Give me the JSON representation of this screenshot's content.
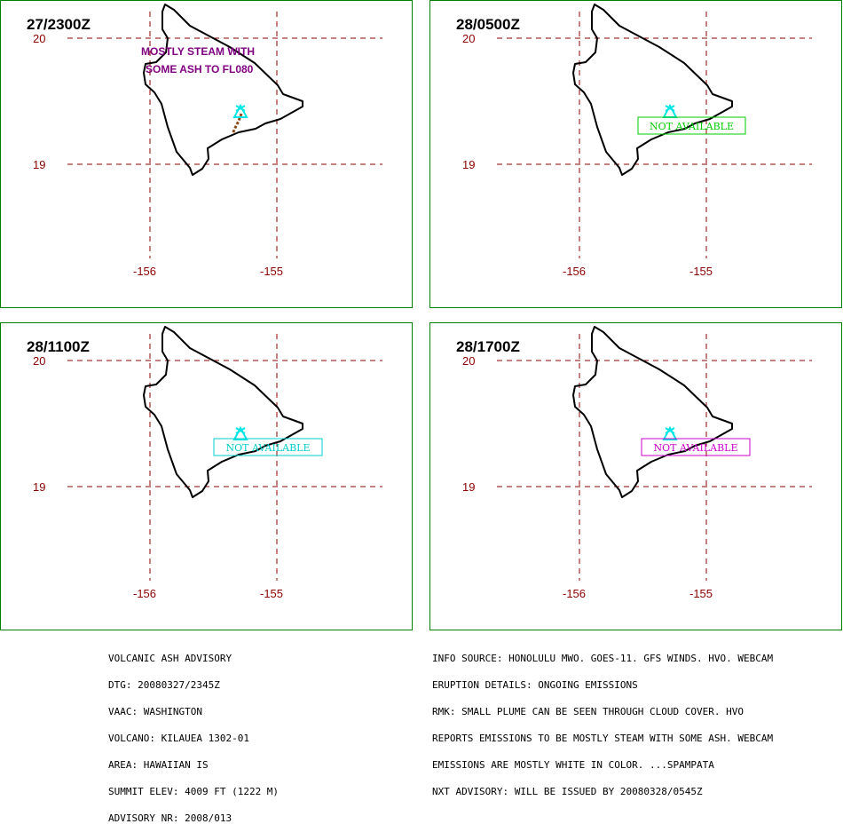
{
  "map": {
    "lat_labels": [
      "20",
      "19"
    ],
    "lon_labels": [
      "-156",
      "-155"
    ],
    "colors": {
      "frame": "#008000",
      "grid": "#8b0000",
      "coast": "#000000",
      "volcano": "#00e5e5",
      "plume": "#8b4513"
    },
    "volcano_icon": "volcano-triangle-icon"
  },
  "panels": [
    {
      "time": "27/2300Z",
      "annotation": {
        "lines": [
          "MOSTLY STEAM WITH",
          "SOME ASH TO FL080"
        ],
        "color": "#800080"
      },
      "status": null,
      "plume": true
    },
    {
      "time": "28/0500Z",
      "annotation": null,
      "status": {
        "text": "NOT AVAILABLE",
        "color": "#00cc00"
      },
      "plume": false
    },
    {
      "time": "28/1100Z",
      "annotation": null,
      "status": {
        "text": "NOT AVAILABLE",
        "color": "#00cccc"
      },
      "plume": false
    },
    {
      "time": "28/1700Z",
      "annotation": null,
      "status": {
        "text": "NOT AVAILABLE",
        "color": "#cc00cc"
      },
      "plume": false
    }
  ],
  "advisory_left": [
    "VOLCANIC ASH ADVISORY",
    "DTG: 20080327/2345Z",
    "VAAC: WASHINGTON",
    "VOLCANO: KILAUEA 1302-01",
    "AREA: HAWAIIAN IS",
    "SUMMIT ELEV: 4009 FT (1222 M)",
    "ADVISORY NR: 2008/013"
  ],
  "advisory_right": [
    "INFO SOURCE: HONOLULU MWO. GOES-11. GFS WINDS. HVO. WEBCAM",
    "ERUPTION DETAILS: ONGOING EMISSIONS",
    "RMK: SMALL PLUME CAN BE SEEN THROUGH CLOUD COVER. HVO",
    "REPORTS EMISSIONS TO BE MOSTLY STEAM WITH SOME ASH. WEBCAM",
    "EMISSIONS ARE MOSTLY WHITE IN COLOR. ...SPAMPATA",
    "NXT ADVISORY: WILL BE ISSUED BY 20080328/0545Z"
  ]
}
